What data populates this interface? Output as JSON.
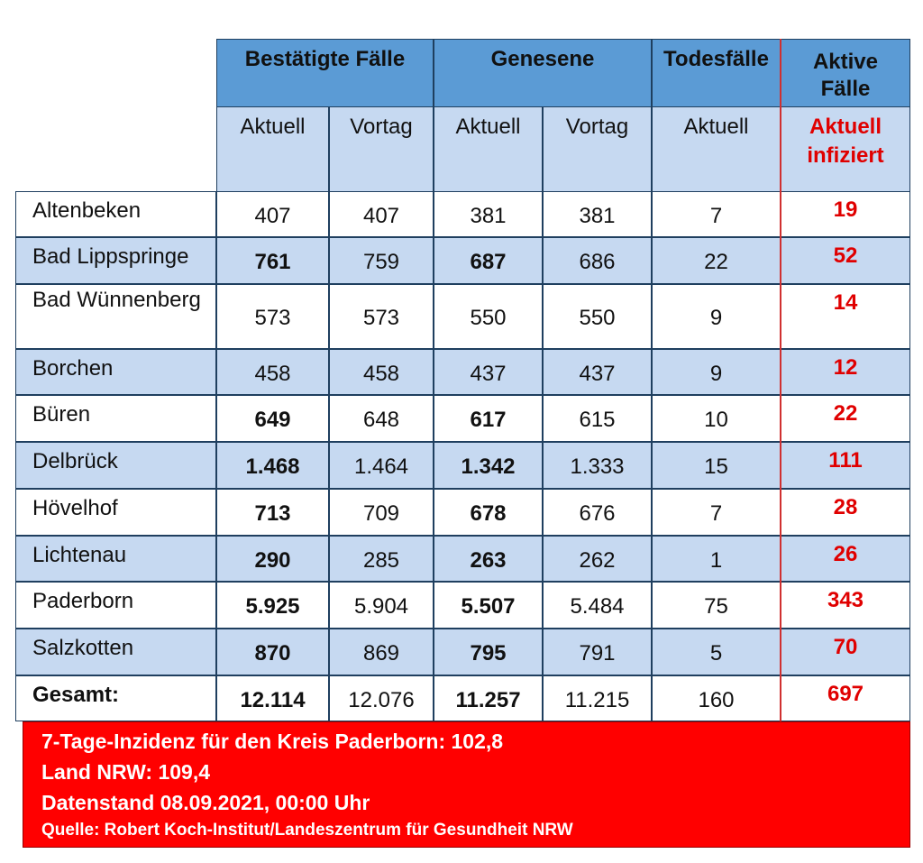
{
  "header": {
    "groups": [
      "Bestätigte Fälle",
      "Genesene",
      "Todesfälle",
      "Aktive Fälle"
    ],
    "subheaders": [
      "Aktuell",
      "Vortag",
      "Aktuell",
      "Vortag",
      "Aktuell",
      "Aktuell infiziert"
    ]
  },
  "table": {
    "rows": [
      {
        "name": "Altenbeken",
        "cells": [
          "407",
          "407",
          "381",
          "381",
          "7",
          "19"
        ],
        "bold": false
      },
      {
        "name": "Bad Lippspringe",
        "cells": [
          "761",
          "759",
          "687",
          "686",
          "22",
          "52"
        ],
        "bold": true
      },
      {
        "name": "Bad Wünnenberg",
        "cells": [
          "573",
          "573",
          "550",
          "550",
          "9",
          "14"
        ],
        "bold": false
      },
      {
        "name": "Borchen",
        "cells": [
          "458",
          "458",
          "437",
          "437",
          "9",
          "12"
        ],
        "bold": false
      },
      {
        "name": "Büren",
        "cells": [
          "649",
          "648",
          "617",
          "615",
          "10",
          "22"
        ],
        "bold": true
      },
      {
        "name": "Delbrück",
        "cells": [
          "1.468",
          "1.464",
          "1.342",
          "1.333",
          "15",
          "111"
        ],
        "bold": true
      },
      {
        "name": "Hövelhof",
        "cells": [
          "713",
          "709",
          "678",
          "676",
          "7",
          "28"
        ],
        "bold": true
      },
      {
        "name": "Lichtenau",
        "cells": [
          "290",
          "285",
          "263",
          "262",
          "1",
          "26"
        ],
        "bold": true
      },
      {
        "name": "Paderborn",
        "cells": [
          "5.925",
          "5.904",
          "5.507",
          "5.484",
          "75",
          "343"
        ],
        "bold": true
      },
      {
        "name": "Salzkotten",
        "cells": [
          "870",
          "869",
          "795",
          "791",
          "5",
          "70"
        ],
        "bold": true
      },
      {
        "name": "Gesamt:",
        "cells": [
          "12.114",
          "12.076",
          "11.257",
          "11.215",
          "160",
          "697"
        ],
        "bold": true
      }
    ]
  },
  "footer": {
    "lines": [
      "7-Tage-Inzidenz für den Kreis Paderborn: 102,8",
      "Land NRW: 109,4",
      "Datenstand 08.09.2021, 00:00 Uhr",
      "Quelle: Robert Koch-Institut/Landeszentrum für Gesundheit NRW"
    ]
  }
}
